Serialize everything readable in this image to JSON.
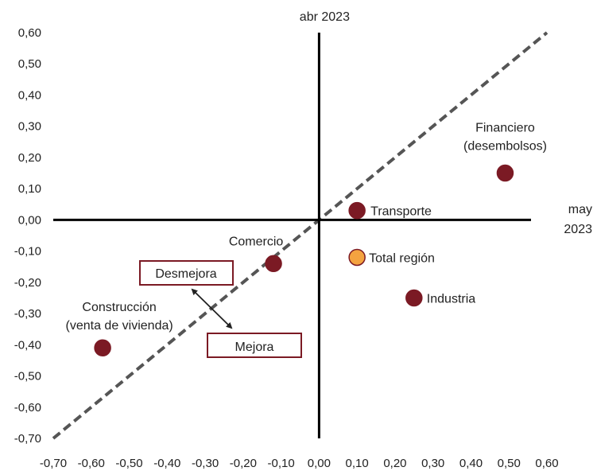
{
  "chart_data": {
    "type": "scatter",
    "xlim": [
      -0.7,
      0.6
    ],
    "ylim": [
      -0.7,
      0.6
    ],
    "x_ticks": [
      "-0,70",
      "-0,60",
      "-0,50",
      "-0,40",
      "-0,30",
      "-0,20",
      "-0,10",
      "0,00",
      "0,10",
      "0,20",
      "0,30",
      "0,40",
      "0,50",
      "0,60"
    ],
    "y_ticks": [
      "0,60",
      "0,50",
      "0,40",
      "0,30",
      "0,20",
      "0,10",
      "0,00",
      "-0,10",
      "-0,20",
      "-0,30",
      "-0,40",
      "-0,50",
      "-0,60",
      "-0,70"
    ],
    "x_axis_label": [
      "may",
      "2023"
    ],
    "y_axis_label": "abr 2023",
    "points": [
      {
        "label": [
          "Financiero",
          "(desembolsos)"
        ],
        "x": 0.49,
        "y": 0.15,
        "color": "#7b1a24"
      },
      {
        "label": [
          "Transporte"
        ],
        "x": 0.1,
        "y": 0.03,
        "color": "#7b1a24"
      },
      {
        "label": [
          "Total región"
        ],
        "x": 0.1,
        "y": -0.12,
        "color": "#f4a340"
      },
      {
        "label": [
          "Industria"
        ],
        "x": 0.25,
        "y": -0.25,
        "color": "#7b1a24"
      },
      {
        "label": [
          "Comercio"
        ],
        "x": -0.12,
        "y": -0.14,
        "color": "#7b1a24"
      },
      {
        "label": [
          "Construcción",
          "(venta de vivienda)"
        ],
        "x": -0.57,
        "y": -0.41,
        "color": "#7b1a24"
      }
    ],
    "reference_line": {
      "type": "45-degree",
      "style": "dashed",
      "color": "#555555"
    },
    "annotations": {
      "worse": "Desmejora",
      "better": "Mejora",
      "box_color": "#7b1a24"
    },
    "grid": false
  }
}
